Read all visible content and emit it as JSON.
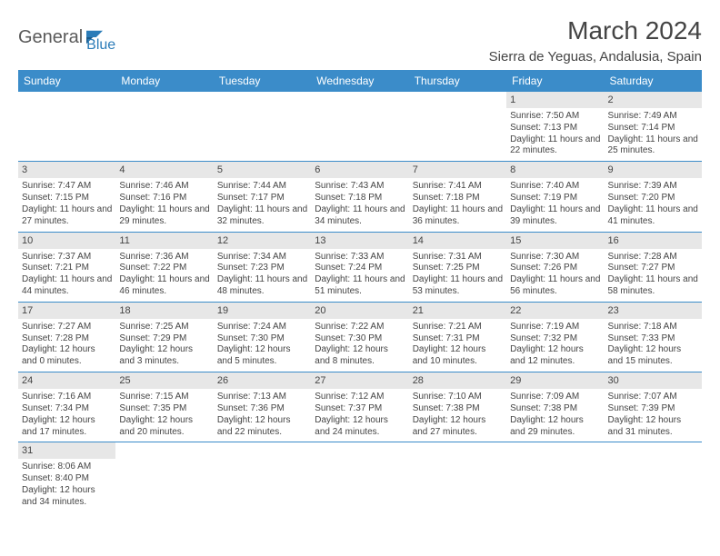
{
  "logo": {
    "text1": "General",
    "text2": "Blue"
  },
  "title": "March 2024",
  "location": "Sierra de Yeguas, Andalusia, Spain",
  "colors": {
    "header_bg": "#3b8cc9",
    "header_text": "#ffffff",
    "daynum_bg": "#e7e7e7",
    "divider": "#3b8cc9",
    "text": "#444444",
    "logo_gray": "#5a5a5a",
    "logo_blue": "#2b7cb8"
  },
  "day_names": [
    "Sunday",
    "Monday",
    "Tuesday",
    "Wednesday",
    "Thursday",
    "Friday",
    "Saturday"
  ],
  "weeks": [
    [
      {
        "n": "",
        "empty": true
      },
      {
        "n": "",
        "empty": true
      },
      {
        "n": "",
        "empty": true
      },
      {
        "n": "",
        "empty": true
      },
      {
        "n": "",
        "empty": true
      },
      {
        "n": "1",
        "sr": "Sunrise: 7:50 AM",
        "ss": "Sunset: 7:13 PM",
        "dl": "Daylight: 11 hours and 22 minutes."
      },
      {
        "n": "2",
        "sr": "Sunrise: 7:49 AM",
        "ss": "Sunset: 7:14 PM",
        "dl": "Daylight: 11 hours and 25 minutes."
      }
    ],
    [
      {
        "n": "3",
        "sr": "Sunrise: 7:47 AM",
        "ss": "Sunset: 7:15 PM",
        "dl": "Daylight: 11 hours and 27 minutes."
      },
      {
        "n": "4",
        "sr": "Sunrise: 7:46 AM",
        "ss": "Sunset: 7:16 PM",
        "dl": "Daylight: 11 hours and 29 minutes."
      },
      {
        "n": "5",
        "sr": "Sunrise: 7:44 AM",
        "ss": "Sunset: 7:17 PM",
        "dl": "Daylight: 11 hours and 32 minutes."
      },
      {
        "n": "6",
        "sr": "Sunrise: 7:43 AM",
        "ss": "Sunset: 7:18 PM",
        "dl": "Daylight: 11 hours and 34 minutes."
      },
      {
        "n": "7",
        "sr": "Sunrise: 7:41 AM",
        "ss": "Sunset: 7:18 PM",
        "dl": "Daylight: 11 hours and 36 minutes."
      },
      {
        "n": "8",
        "sr": "Sunrise: 7:40 AM",
        "ss": "Sunset: 7:19 PM",
        "dl": "Daylight: 11 hours and 39 minutes."
      },
      {
        "n": "9",
        "sr": "Sunrise: 7:39 AM",
        "ss": "Sunset: 7:20 PM",
        "dl": "Daylight: 11 hours and 41 minutes."
      }
    ],
    [
      {
        "n": "10",
        "sr": "Sunrise: 7:37 AM",
        "ss": "Sunset: 7:21 PM",
        "dl": "Daylight: 11 hours and 44 minutes."
      },
      {
        "n": "11",
        "sr": "Sunrise: 7:36 AM",
        "ss": "Sunset: 7:22 PM",
        "dl": "Daylight: 11 hours and 46 minutes."
      },
      {
        "n": "12",
        "sr": "Sunrise: 7:34 AM",
        "ss": "Sunset: 7:23 PM",
        "dl": "Daylight: 11 hours and 48 minutes."
      },
      {
        "n": "13",
        "sr": "Sunrise: 7:33 AM",
        "ss": "Sunset: 7:24 PM",
        "dl": "Daylight: 11 hours and 51 minutes."
      },
      {
        "n": "14",
        "sr": "Sunrise: 7:31 AM",
        "ss": "Sunset: 7:25 PM",
        "dl": "Daylight: 11 hours and 53 minutes."
      },
      {
        "n": "15",
        "sr": "Sunrise: 7:30 AM",
        "ss": "Sunset: 7:26 PM",
        "dl": "Daylight: 11 hours and 56 minutes."
      },
      {
        "n": "16",
        "sr": "Sunrise: 7:28 AM",
        "ss": "Sunset: 7:27 PM",
        "dl": "Daylight: 11 hours and 58 minutes."
      }
    ],
    [
      {
        "n": "17",
        "sr": "Sunrise: 7:27 AM",
        "ss": "Sunset: 7:28 PM",
        "dl": "Daylight: 12 hours and 0 minutes."
      },
      {
        "n": "18",
        "sr": "Sunrise: 7:25 AM",
        "ss": "Sunset: 7:29 PM",
        "dl": "Daylight: 12 hours and 3 minutes."
      },
      {
        "n": "19",
        "sr": "Sunrise: 7:24 AM",
        "ss": "Sunset: 7:30 PM",
        "dl": "Daylight: 12 hours and 5 minutes."
      },
      {
        "n": "20",
        "sr": "Sunrise: 7:22 AM",
        "ss": "Sunset: 7:30 PM",
        "dl": "Daylight: 12 hours and 8 minutes."
      },
      {
        "n": "21",
        "sr": "Sunrise: 7:21 AM",
        "ss": "Sunset: 7:31 PM",
        "dl": "Daylight: 12 hours and 10 minutes."
      },
      {
        "n": "22",
        "sr": "Sunrise: 7:19 AM",
        "ss": "Sunset: 7:32 PM",
        "dl": "Daylight: 12 hours and 12 minutes."
      },
      {
        "n": "23",
        "sr": "Sunrise: 7:18 AM",
        "ss": "Sunset: 7:33 PM",
        "dl": "Daylight: 12 hours and 15 minutes."
      }
    ],
    [
      {
        "n": "24",
        "sr": "Sunrise: 7:16 AM",
        "ss": "Sunset: 7:34 PM",
        "dl": "Daylight: 12 hours and 17 minutes."
      },
      {
        "n": "25",
        "sr": "Sunrise: 7:15 AM",
        "ss": "Sunset: 7:35 PM",
        "dl": "Daylight: 12 hours and 20 minutes."
      },
      {
        "n": "26",
        "sr": "Sunrise: 7:13 AM",
        "ss": "Sunset: 7:36 PM",
        "dl": "Daylight: 12 hours and 22 minutes."
      },
      {
        "n": "27",
        "sr": "Sunrise: 7:12 AM",
        "ss": "Sunset: 7:37 PM",
        "dl": "Daylight: 12 hours and 24 minutes."
      },
      {
        "n": "28",
        "sr": "Sunrise: 7:10 AM",
        "ss": "Sunset: 7:38 PM",
        "dl": "Daylight: 12 hours and 27 minutes."
      },
      {
        "n": "29",
        "sr": "Sunrise: 7:09 AM",
        "ss": "Sunset: 7:38 PM",
        "dl": "Daylight: 12 hours and 29 minutes."
      },
      {
        "n": "30",
        "sr": "Sunrise: 7:07 AM",
        "ss": "Sunset: 7:39 PM",
        "dl": "Daylight: 12 hours and 31 minutes."
      }
    ],
    [
      {
        "n": "31",
        "sr": "Sunrise: 8:06 AM",
        "ss": "Sunset: 8:40 PM",
        "dl": "Daylight: 12 hours and 34 minutes."
      },
      {
        "n": "",
        "empty": true
      },
      {
        "n": "",
        "empty": true
      },
      {
        "n": "",
        "empty": true
      },
      {
        "n": "",
        "empty": true
      },
      {
        "n": "",
        "empty": true
      },
      {
        "n": "",
        "empty": true
      }
    ]
  ]
}
